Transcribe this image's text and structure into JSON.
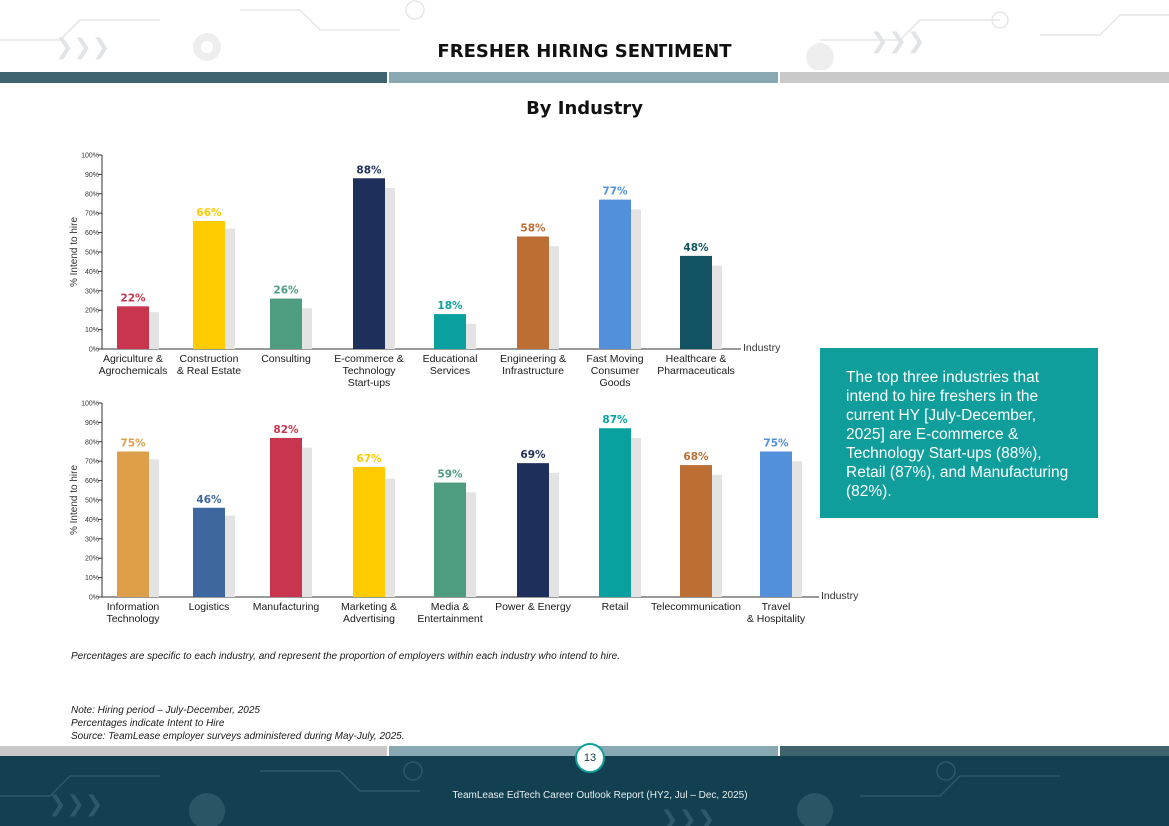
{
  "header": {
    "title": "FRESHER HIRING SENTIMENT",
    "subtitle": "By Industry"
  },
  "colors": {
    "band_dark": "#3f6470",
    "band_mid": "#88a9b1",
    "band_light": "#c9c9c9",
    "shadow_bar": "#e3e3e3",
    "callout_bg": "#0f9e9c",
    "footer_bg": "#134050"
  },
  "chart_data": [
    {
      "type": "bar",
      "ylabel": "% Intend to hire",
      "xlabel": "Industry",
      "ylim": [
        0,
        100
      ],
      "yticks": [
        "0%",
        "10%",
        "20%",
        "30%",
        "40%",
        "50%",
        "60%",
        "70%",
        "80%",
        "90%",
        "100%"
      ],
      "categories": [
        [
          "Agriculture &",
          "Agrochemicals"
        ],
        [
          "Construction",
          "& Real Estate"
        ],
        [
          "Consulting"
        ],
        [
          "E-commerce &",
          "Technology",
          "Start-ups"
        ],
        [
          "Educational",
          "Services"
        ],
        [
          "Engineering &",
          "Infrastructure"
        ],
        [
          "Fast Moving",
          "Consumer",
          "Goods"
        ],
        [
          "Healthcare &",
          "Pharmaceuticals"
        ]
      ],
      "values": [
        22,
        66,
        26,
        88,
        18,
        58,
        77,
        48
      ],
      "value_labels": [
        "22%",
        "66%",
        "26%",
        "88%",
        "18%",
        "58%",
        "77%",
        "48%"
      ],
      "previous_values": [
        19,
        62,
        21,
        83,
        13,
        53,
        72,
        43
      ],
      "colors": [
        "#c8354f",
        "#fecb00",
        "#4f9d80",
        "#1f2f5c",
        "#0aa0a0",
        "#bd6e34",
        "#5290dc",
        "#115363"
      ]
    },
    {
      "type": "bar",
      "ylabel": "% Intend to hire",
      "xlabel": "Industry",
      "ylim": [
        0,
        100
      ],
      "yticks": [
        "0%",
        "10%",
        "20%",
        "30%",
        "40%",
        "50%",
        "60%",
        "70%",
        "80%",
        "90%",
        "100%"
      ],
      "categories": [
        [
          "Information",
          "Technology"
        ],
        [
          "Logistics"
        ],
        [
          "Manufacturing"
        ],
        [
          "Marketing &",
          "Advertising"
        ],
        [
          "Media &",
          "Entertainment"
        ],
        [
          "Power & Energy"
        ],
        [
          "Retail"
        ],
        [
          "Telecommunication"
        ],
        [
          "Travel",
          "& Hospitality"
        ]
      ],
      "values": [
        75,
        46,
        82,
        67,
        59,
        69,
        87,
        68,
        75
      ],
      "value_labels": [
        "75%",
        "46%",
        "82%",
        "67%",
        "59%",
        "69%",
        "87%",
        "68%",
        "75%"
      ],
      "previous_values": [
        71,
        42,
        77,
        61,
        54,
        64,
        82,
        63,
        70
      ],
      "colors": [
        "#dd9f4a",
        "#3e679f",
        "#c8354f",
        "#fecb00",
        "#4f9d80",
        "#1f2f5c",
        "#0aa0a0",
        "#bd6e34",
        "#5290dc"
      ]
    }
  ],
  "callout": {
    "text": "The top three industries that intend to hire freshers in the current HY [July-December, 2025] are E-commerce & Technology Start-ups (88%), Retail (87%), and Manufacturing (82%)."
  },
  "notes": {
    "percentages_note": "Percentages are specific to each industry, and represent the proportion of employers within each industry who intend to hire.",
    "hiring_period": "Note: Hiring period – July-December, 2025",
    "percent_meaning": "Percentages indicate Intent to Hire",
    "source": "Source:  TeamLease employer surveys administered during May-July, 2025."
  },
  "footer": {
    "page_number": "13",
    "report_title": "TeamLease EdTech Career Outlook Report (HY2, Jul – Dec, 2025)"
  }
}
